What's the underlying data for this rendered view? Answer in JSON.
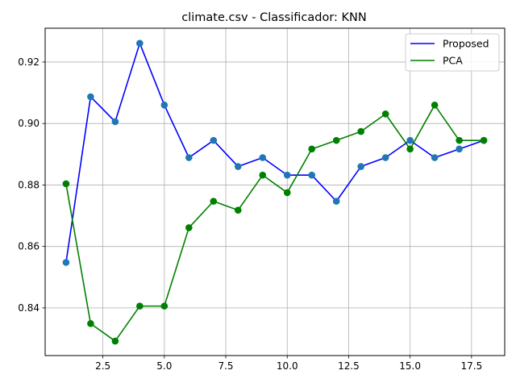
{
  "chart_data": {
    "type": "line",
    "title": "climate.csv - Classificador: KNN",
    "xlabel": "",
    "ylabel": "",
    "xlim": [
      0.15,
      18.85
    ],
    "ylim": [
      0.8245,
      0.931
    ],
    "xticks": [
      2.5,
      5.0,
      7.5,
      10.0,
      12.5,
      15.0,
      17.5
    ],
    "xtick_labels": [
      "2.5",
      "5.0",
      "7.5",
      "10.0",
      "12.5",
      "15.0",
      "17.5"
    ],
    "yticks": [
      0.84,
      0.86,
      0.88,
      0.9,
      0.92
    ],
    "ytick_labels": [
      "0.84",
      "0.86",
      "0.88",
      "0.90",
      "0.92"
    ],
    "grid": true,
    "legend_position": "top-right",
    "x": [
      1,
      2,
      3,
      4,
      5,
      6,
      7,
      8,
      9,
      10,
      11,
      12,
      13,
      14,
      15,
      16,
      17,
      18
    ],
    "series": [
      {
        "name": "Proposed",
        "color": "#0000ff",
        "marker_color": "#1f77b4",
        "values": [
          0.8548,
          0.9087,
          0.9006,
          0.9261,
          0.906,
          0.8889,
          0.8945,
          0.886,
          0.8889,
          0.8832,
          0.8832,
          0.8747,
          0.886,
          0.8889,
          0.8945,
          0.8889,
          0.8917,
          0.8945
        ]
      },
      {
        "name": "PCA",
        "color": "#008000",
        "marker_color": "#008000",
        "values": [
          0.8804,
          0.8349,
          0.8292,
          0.8406,
          0.8406,
          0.8661,
          0.8747,
          0.8718,
          0.8832,
          0.8775,
          0.8917,
          0.8945,
          0.8974,
          0.9031,
          0.8917,
          0.906,
          0.8945,
          0.8945
        ]
      }
    ]
  }
}
